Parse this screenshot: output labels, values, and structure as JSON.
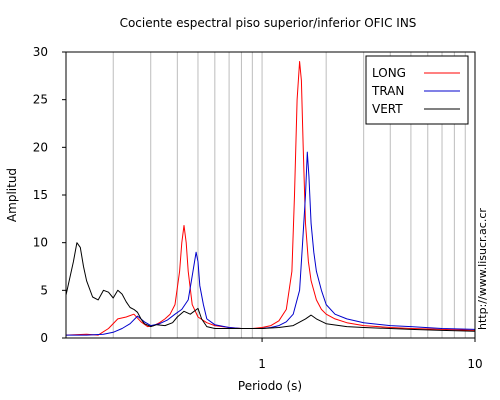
{
  "chart_data": {
    "type": "line",
    "title": "Cociente espectral piso superior/inferior  OFIC INS",
    "xlabel": "Periodo (s)",
    "ylabel": "Amplitud",
    "xscale": "log",
    "xlim": [
      0.12,
      10
    ],
    "ylim": [
      0,
      30
    ],
    "x_ticks": [
      {
        "value": 1,
        "label": "1"
      },
      {
        "value": 10,
        "label": "10"
      }
    ],
    "y_ticks": [
      0,
      5,
      10,
      15,
      20,
      25,
      30
    ],
    "grid": "vertical minor and major lines at log decades",
    "legend_position": "top-right",
    "side_note": "http://www.lisucr.ac.cr",
    "series": [
      {
        "name": "LONG",
        "color": "#ff0000",
        "x": [
          0.12,
          0.15,
          0.17,
          0.19,
          0.21,
          0.23,
          0.25,
          0.27,
          0.29,
          0.31,
          0.33,
          0.35,
          0.37,
          0.39,
          0.41,
          0.42,
          0.43,
          0.44,
          0.45,
          0.47,
          0.5,
          0.55,
          0.6,
          0.7,
          0.8,
          0.9,
          1.0,
          1.1,
          1.2,
          1.3,
          1.38,
          1.42,
          1.46,
          1.5,
          1.53,
          1.56,
          1.6,
          1.65,
          1.7,
          1.8,
          1.9,
          2.0,
          2.2,
          2.5,
          3.0,
          4.0,
          5.0,
          7.0,
          10.0
        ],
        "y": [
          0.3,
          0.4,
          0.3,
          1.0,
          2.0,
          2.2,
          2.5,
          1.7,
          1.2,
          1.3,
          1.6,
          2.0,
          2.5,
          3.5,
          7.0,
          10.0,
          11.8,
          10.0,
          7.0,
          3.5,
          2.2,
          1.6,
          1.3,
          1.1,
          1.0,
          1.0,
          1.1,
          1.3,
          1.8,
          3.0,
          7.0,
          15.0,
          25.0,
          29.0,
          27.0,
          20.0,
          12.0,
          8.0,
          6.0,
          4.0,
          3.0,
          2.5,
          2.0,
          1.6,
          1.3,
          1.1,
          1.0,
          0.9,
          0.8
        ]
      },
      {
        "name": "TRAN",
        "color": "#0000cc",
        "x": [
          0.12,
          0.15,
          0.18,
          0.2,
          0.22,
          0.24,
          0.26,
          0.28,
          0.3,
          0.33,
          0.36,
          0.39,
          0.42,
          0.45,
          0.47,
          0.49,
          0.5,
          0.51,
          0.53,
          0.55,
          0.6,
          0.7,
          0.8,
          0.9,
          1.0,
          1.1,
          1.2,
          1.3,
          1.4,
          1.5,
          1.55,
          1.6,
          1.63,
          1.66,
          1.7,
          1.75,
          1.8,
          1.9,
          2.0,
          2.2,
          2.5,
          3.0,
          4.0,
          5.0,
          7.0,
          10.0
        ],
        "y": [
          0.3,
          0.3,
          0.4,
          0.6,
          1.0,
          1.5,
          2.3,
          1.7,
          1.3,
          1.5,
          1.9,
          2.5,
          3.0,
          4.0,
          6.5,
          9.0,
          8.0,
          5.5,
          3.5,
          2.0,
          1.4,
          1.1,
          1.0,
          1.0,
          1.0,
          1.1,
          1.3,
          1.7,
          2.5,
          5.0,
          10.0,
          15.0,
          19.5,
          17.0,
          12.0,
          9.0,
          7.0,
          5.0,
          3.5,
          2.5,
          2.0,
          1.6,
          1.3,
          1.2,
          1.0,
          0.9
        ]
      },
      {
        "name": "VERT",
        "color": "#000000",
        "x": [
          0.12,
          0.13,
          0.135,
          0.14,
          0.145,
          0.15,
          0.16,
          0.17,
          0.18,
          0.19,
          0.2,
          0.21,
          0.22,
          0.23,
          0.24,
          0.25,
          0.26,
          0.27,
          0.28,
          0.3,
          0.32,
          0.35,
          0.38,
          0.4,
          0.43,
          0.46,
          0.5,
          0.52,
          0.55,
          0.6,
          0.7,
          0.8,
          1.0,
          1.2,
          1.4,
          1.6,
          1.7,
          1.8,
          2.0,
          2.5,
          3.0,
          4.0,
          5.0,
          7.0,
          10.0
        ],
        "y": [
          4.5,
          8.0,
          10.0,
          9.5,
          7.5,
          6.0,
          4.3,
          4.0,
          5.0,
          4.8,
          4.2,
          5.0,
          4.6,
          3.8,
          3.2,
          3.0,
          2.7,
          2.0,
          1.5,
          1.2,
          1.4,
          1.3,
          1.6,
          2.2,
          2.8,
          2.5,
          3.1,
          2.0,
          1.2,
          1.0,
          1.0,
          1.0,
          1.0,
          1.1,
          1.3,
          2.0,
          2.4,
          2.0,
          1.5,
          1.2,
          1.1,
          1.0,
          0.9,
          0.8,
          0.7
        ]
      }
    ]
  }
}
